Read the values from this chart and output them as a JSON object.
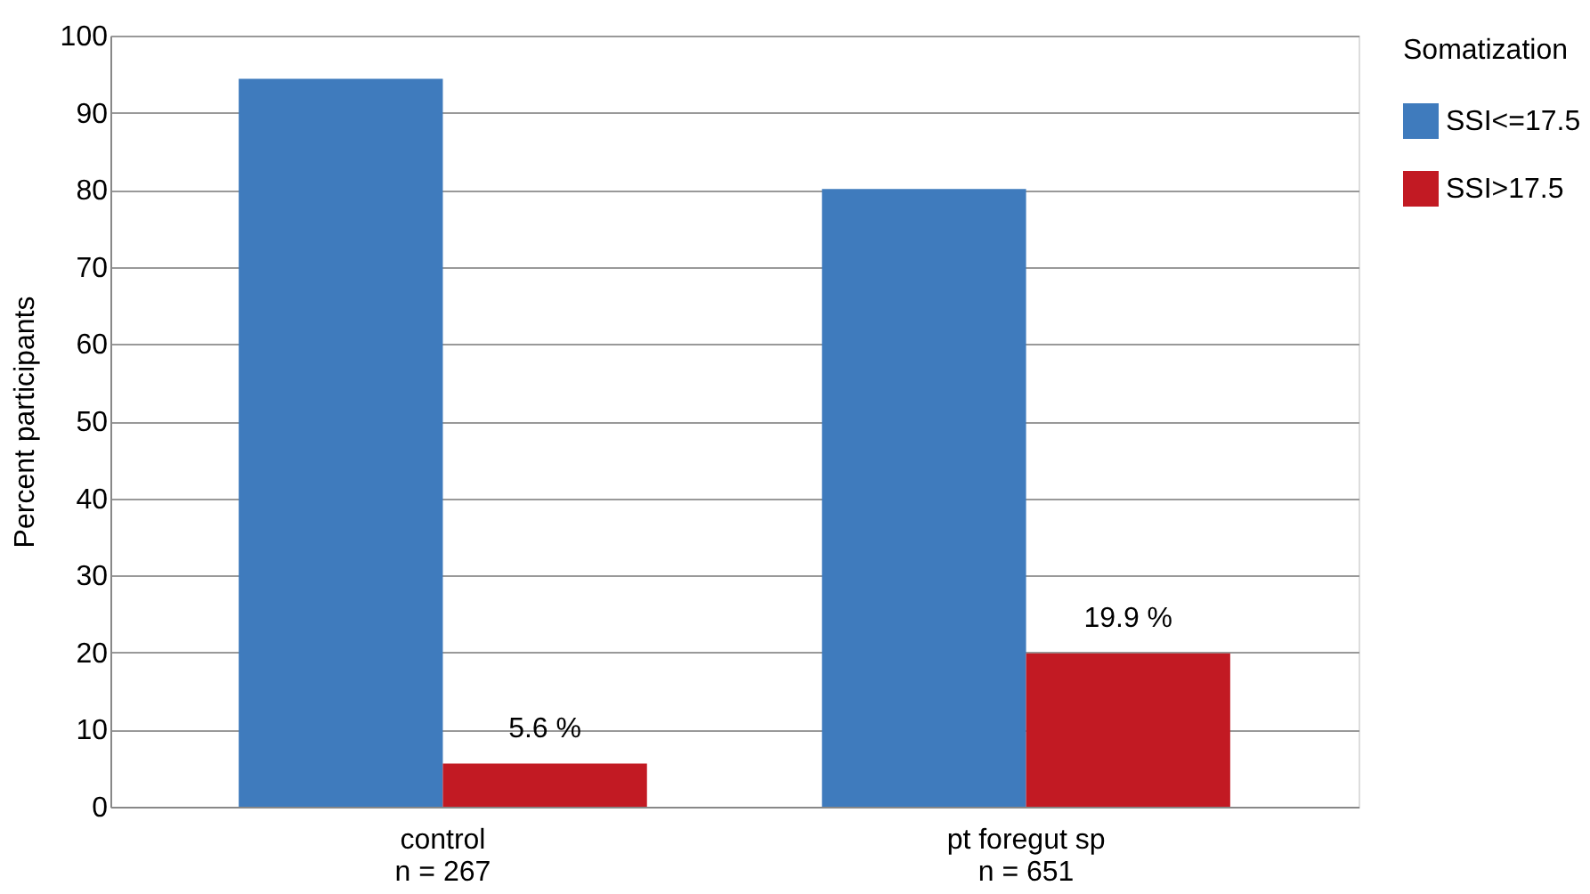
{
  "chart_data": {
    "type": "bar",
    "ylabel": "Percent participants",
    "legend_title": "Somatization",
    "categories": [
      "control\nn = 267",
      "pt foregut sp\nn = 651"
    ],
    "series": [
      {
        "name": "SSI<=17.5",
        "color": "#3f7bbd",
        "values": [
          94.4,
          80.1
        ]
      },
      {
        "name": "SSI>17.5",
        "color": "#c21a23",
        "values": [
          5.6,
          19.9
        ],
        "value_labels": [
          "5.6 %",
          "19.9 %"
        ]
      }
    ],
    "ylim": [
      0,
      100
    ],
    "yticks": [
      0,
      10,
      20,
      30,
      40,
      50,
      60,
      70,
      80,
      90,
      100
    ],
    "grid": "y",
    "legend": "right"
  }
}
